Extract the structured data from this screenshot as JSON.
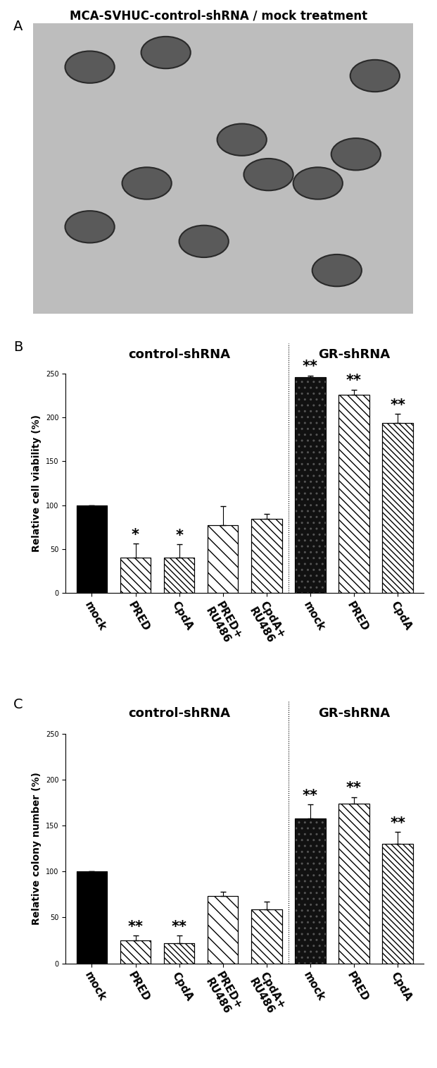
{
  "image_panel": {
    "panel_label": "A",
    "title": "MCA-SVHUC-control-shRNA / mock treatment"
  },
  "chart_data": [
    {
      "type": "bar",
      "panel_label": "B",
      "y_label": "Relative cell viability (%)",
      "groups": [
        {
          "label": "control-shRNA",
          "size": 5
        },
        {
          "label": "GR-shRNA",
          "size": 3
        }
      ],
      "categories": [
        "mock",
        "PRED",
        "CpdA",
        "PRED+\nRU486",
        "CpdA+\nRU486",
        "mock",
        "PRED",
        "CpdA"
      ],
      "values": [
        100,
        40,
        40,
        77,
        84,
        246,
        226,
        194
      ],
      "errors": [
        0,
        16,
        15,
        22,
        6,
        2,
        6,
        10
      ],
      "significance": [
        null,
        "*",
        "*",
        null,
        null,
        "**",
        "**",
        "**"
      ],
      "colors": [
        "#000000",
        "#ffffff",
        "#ffffff",
        "#ffffff",
        "#ffffff",
        "#111111",
        "#ffffff",
        "#ffffff"
      ],
      "ylim": [
        0,
        250
      ],
      "yticks": [
        0,
        50,
        100,
        150,
        200,
        250
      ]
    },
    {
      "type": "bar",
      "panel_label": "C",
      "y_label": "Relative colony number (%)",
      "groups": [
        {
          "label": "control-shRNA",
          "size": 5
        },
        {
          "label": "GR-shRNA",
          "size": 3
        }
      ],
      "categories": [
        "mock",
        "PRED",
        "CpdA",
        "PRED+\nRU486",
        "CpdA+\nRU486",
        "mock",
        "PRED",
        "CpdA"
      ],
      "values": [
        100,
        25,
        22,
        73,
        59,
        158,
        174,
        130
      ],
      "errors": [
        0,
        5,
        8,
        5,
        8,
        15,
        7,
        13
      ],
      "significance": [
        null,
        "**",
        "**",
        null,
        null,
        "**",
        "**",
        "**"
      ],
      "colors": [
        "#000000",
        "#ffffff",
        "#ffffff",
        "#ffffff",
        "#ffffff",
        "#111111",
        "#ffffff",
        "#ffffff"
      ],
      "ylim": [
        0,
        250
      ],
      "yticks": [
        0,
        50,
        100,
        150,
        200,
        250
      ]
    }
  ]
}
